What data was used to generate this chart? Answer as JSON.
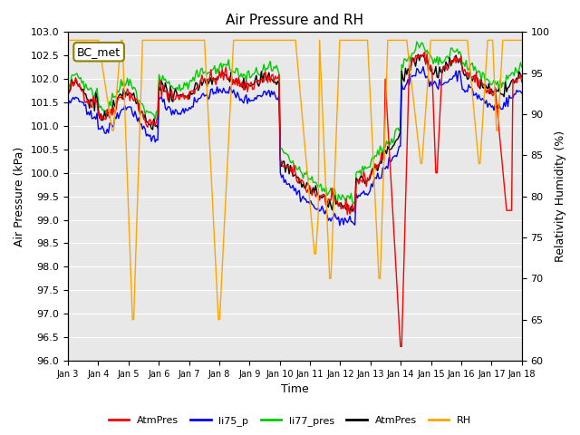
{
  "title": "Air Pressure and RH",
  "xlabel": "Time",
  "ylabel_left": "Air Pressure (kPa)",
  "ylabel_right": "Relativity Humidity (%)",
  "ylim_left": [
    96.0,
    103.0
  ],
  "ylim_right": [
    60,
    100
  ],
  "yticks_left": [
    96.0,
    96.5,
    97.0,
    97.5,
    98.0,
    98.5,
    99.0,
    99.5,
    100.0,
    100.5,
    101.0,
    101.5,
    102.0,
    102.5,
    103.0
  ],
  "yticks_right": [
    60,
    65,
    70,
    75,
    80,
    85,
    90,
    95,
    100
  ],
  "xtick_labels": [
    "Jan 3",
    "Jan 4",
    "Jan 5",
    "Jan 6",
    "Jan 7",
    "Jan 8",
    "Jan 9",
    "Jan 10",
    "Jan 11",
    "Jan 12",
    "Jan 13",
    "Jan 14",
    "Jan 15",
    "Jan 16",
    "Jan 17",
    "Jan 18"
  ],
  "bg_color": "#e8e8e8",
  "series_colors": {
    "AtmPres_red": "#ff0000",
    "li75_p": "#0000ff",
    "li77_pres": "#00cc00",
    "AtmPres_black": "#000000",
    "RH": "#ffa500"
  },
  "legend_entries": [
    "AtmPres",
    "li75_p",
    "li77_pres",
    "AtmPres",
    "RH"
  ],
  "legend_colors": [
    "#ff0000",
    "#0000ff",
    "#00cc00",
    "#000000",
    "#ffa500"
  ],
  "bc_met_label": "BC_met",
  "n_points": 360
}
